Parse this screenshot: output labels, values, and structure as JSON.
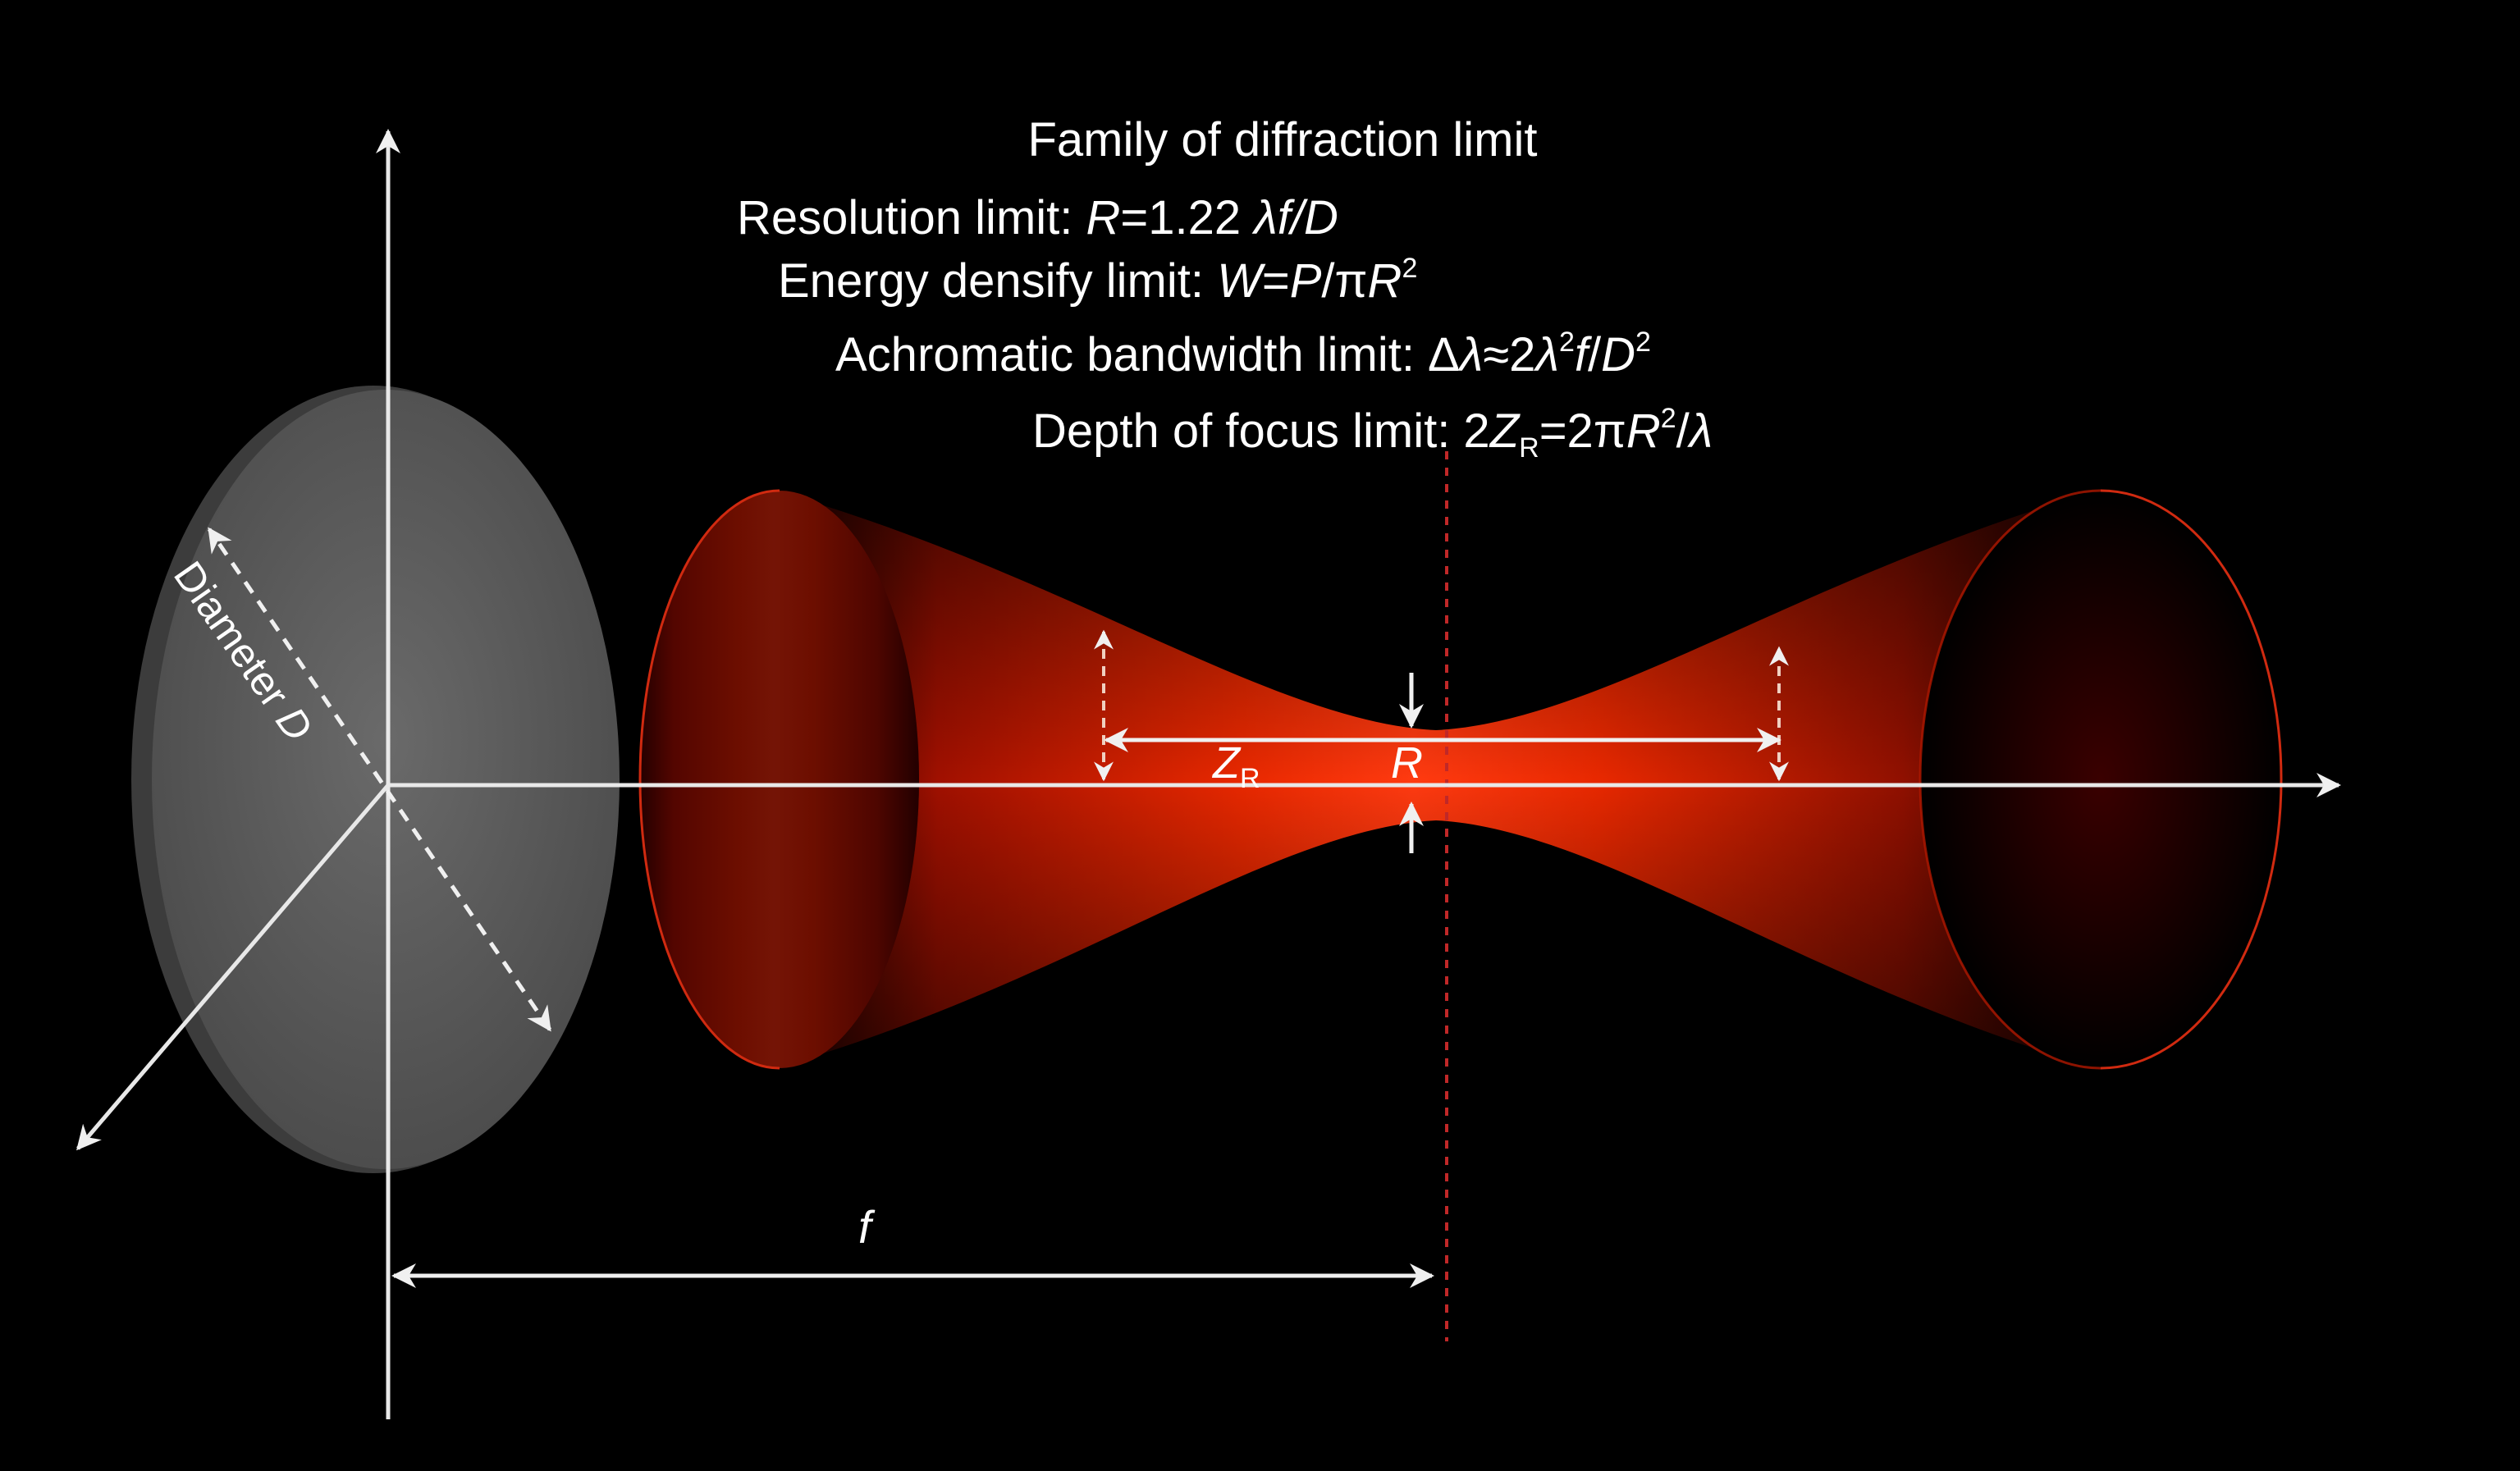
{
  "title": "Family of diffraction limit",
  "formulas": {
    "resolution": {
      "label": "Resolution limit: ",
      "r": "R",
      "eq": "=1.22 ",
      "expr": "λf/D"
    },
    "energy": {
      "label": "Energy densify limit: ",
      "w": "W",
      "eq": "=",
      "p": "P",
      "slash_pi": "/π",
      "r": "R",
      "exp": "2"
    },
    "achromatic": {
      "label": "Achromatic bandwidth limit: Δ",
      "lambda": "λ",
      "approx": "≈2",
      "lambda2": "λ",
      "exp1": "2",
      "f": "f",
      "slash": "/",
      "d": "D",
      "exp2": "2"
    },
    "depth": {
      "label": "Depth of focus limit: 2",
      "z": "Z",
      "sub": "R",
      "eq": "=2π",
      "r": "R",
      "exp": "2",
      "slash": "/",
      "lambda": "λ"
    }
  },
  "labels": {
    "diameter": "Diameter ",
    "diameter_symbol": "D",
    "zr_symbol": "Z",
    "zr_sub": "R",
    "r_symbol": "R",
    "f_symbol": "f"
  },
  "colors": {
    "background": "#000000",
    "beam": "#ff2a00",
    "beam_dark": "#3a0000",
    "lens": "#5a5a5a",
    "axis": "#e8e8e8",
    "focal_line": "#c02020"
  }
}
